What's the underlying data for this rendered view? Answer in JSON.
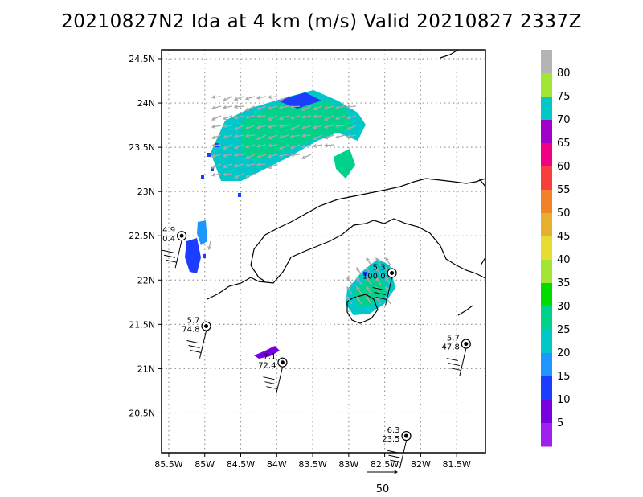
{
  "chart_data": {
    "type": "scatter",
    "title": "20210827N2 Ida at 4 km (m/s) Valid 20210827 2337Z",
    "xlim": [
      -85.6,
      -81.1
    ],
    "ylim": [
      20.05,
      24.6
    ],
    "x_ticks": [
      -85.5,
      -85,
      -84.5,
      -84,
      -83.5,
      -83,
      -82.5,
      -82,
      -81.5
    ],
    "x_tick_labels": [
      "85.5W",
      "85W",
      "84.5W",
      "84W",
      "83.5W",
      "83W",
      "82.5W",
      "82W",
      "81.5W"
    ],
    "y_ticks": [
      20.5,
      21,
      21.5,
      22,
      22.5,
      23,
      23.5,
      24,
      24.5
    ],
    "y_tick_labels": [
      "20.5N",
      "21N",
      "21.5N",
      "22N",
      "22.5N",
      "23N",
      "23.5N",
      "24N",
      "24.5N"
    ],
    "grid": true,
    "colorbar": {
      "labels": [
        "5",
        "10",
        "15",
        "20",
        "25",
        "30",
        "35",
        "40",
        "45",
        "50",
        "55",
        "60",
        "65",
        "70",
        "75",
        "80"
      ],
      "colors": [
        "#a020f0",
        "#7800e0",
        "#1c3cff",
        "#1e96ff",
        "#00c8c8",
        "#00d28c",
        "#00dc00",
        "#a0e632",
        "#e6dc32",
        "#e6af2d",
        "#f08228",
        "#fa3c3c",
        "#f00082",
        "#a000c8",
        "#00c8c8",
        "#a0e632",
        "#b4b4b4"
      ]
    },
    "reference_vector_label": "50",
    "stations": [
      {
        "lon": -85.32,
        "lat": 22.5,
        "top": "4.9",
        "bottom": "0.4"
      },
      {
        "lon": -84.98,
        "lat": 21.48,
        "top": "5.7",
        "bottom": "74.8"
      },
      {
        "lon": -83.92,
        "lat": 21.07,
        "top": "7.1",
        "bottom": "72.4"
      },
      {
        "lon": -82.4,
        "lat": 22.08,
        "top": "5.3",
        "bottom": "100.0"
      },
      {
        "lon": -82.2,
        "lat": 20.24,
        "top": "6.3",
        "bottom": "23.5"
      },
      {
        "lon": -81.37,
        "lat": 21.28,
        "top": "5.7",
        "bottom": "47.8"
      }
    ]
  }
}
